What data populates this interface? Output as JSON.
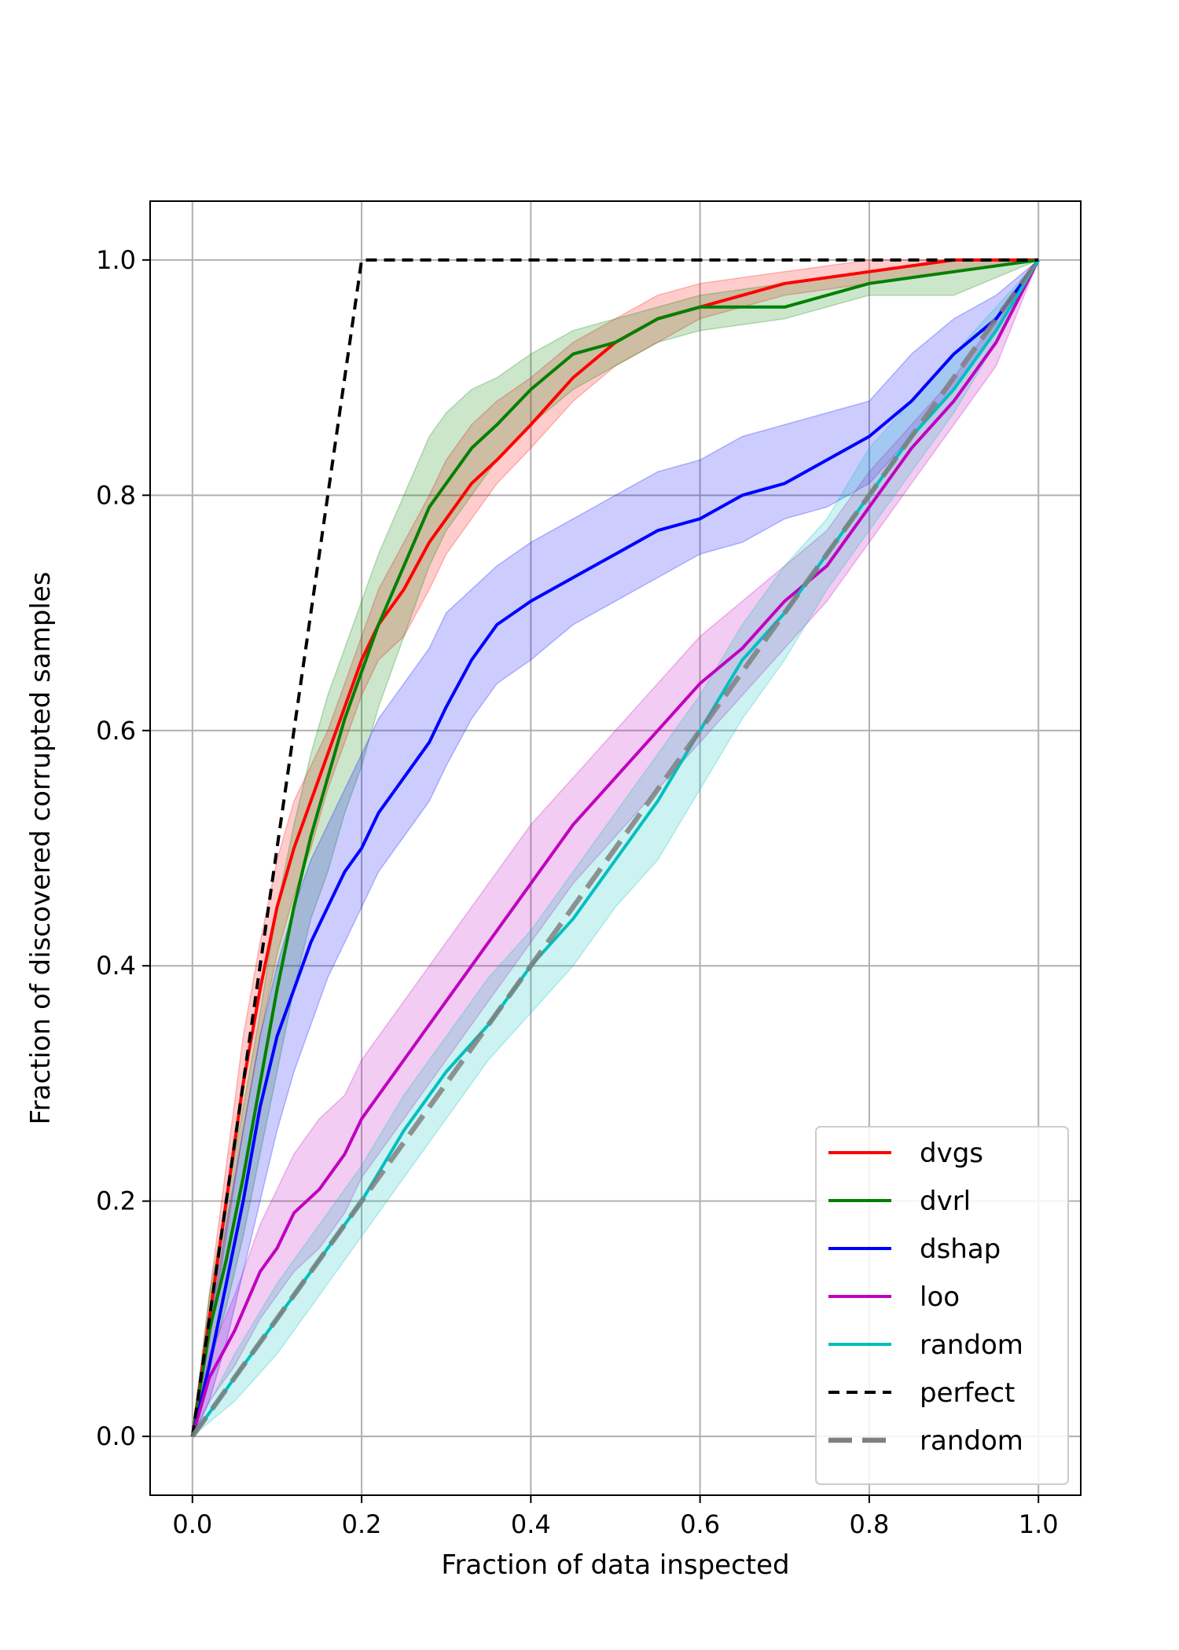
{
  "chart_data": {
    "type": "line",
    "title": "",
    "xlabel": "Fraction of data inspected",
    "ylabel": "Fraction of discovered corrupted samples",
    "xlim": [
      -0.05,
      1.05
    ],
    "ylim": [
      -0.05,
      1.05
    ],
    "grid": true,
    "legend_position": "bottom-right",
    "x_ticks": [
      0.0,
      0.2,
      0.4,
      0.6,
      0.8,
      1.0
    ],
    "y_ticks": [
      0.0,
      0.2,
      0.4,
      0.6,
      0.8,
      1.0
    ],
    "x_tick_labels": [
      "0.0",
      "0.2",
      "0.4",
      "0.6",
      "0.8",
      "1.0"
    ],
    "y_tick_labels": [
      "0.0",
      "0.2",
      "0.4",
      "0.6",
      "0.8",
      "1.0"
    ],
    "series": [
      {
        "name": "dvgs",
        "color": "#ff0000",
        "style": "solid",
        "band": true,
        "x": [
          0,
          0.02,
          0.04,
          0.06,
          0.08,
          0.1,
          0.12,
          0.14,
          0.16,
          0.18,
          0.2,
          0.22,
          0.25,
          0.28,
          0.3,
          0.33,
          0.36,
          0.4,
          0.45,
          0.5,
          0.55,
          0.6,
          0.7,
          0.8,
          0.9,
          1.0
        ],
        "y": [
          0,
          0.1,
          0.2,
          0.3,
          0.38,
          0.45,
          0.5,
          0.54,
          0.58,
          0.62,
          0.66,
          0.69,
          0.72,
          0.76,
          0.78,
          0.81,
          0.83,
          0.86,
          0.9,
          0.93,
          0.95,
          0.96,
          0.98,
          0.99,
          1.0,
          1.0
        ],
        "lower": [
          0,
          0.08,
          0.17,
          0.26,
          0.34,
          0.41,
          0.46,
          0.5,
          0.55,
          0.59,
          0.63,
          0.66,
          0.68,
          0.72,
          0.75,
          0.78,
          0.81,
          0.84,
          0.88,
          0.91,
          0.93,
          0.95,
          0.97,
          0.98,
          0.99,
          1.0
        ],
        "upper": [
          0,
          0.12,
          0.23,
          0.34,
          0.42,
          0.49,
          0.54,
          0.57,
          0.6,
          0.64,
          0.68,
          0.72,
          0.76,
          0.8,
          0.83,
          0.86,
          0.88,
          0.9,
          0.93,
          0.95,
          0.97,
          0.98,
          0.99,
          1.0,
          1.0,
          1.0
        ]
      },
      {
        "name": "dvrl",
        "color": "#008000",
        "style": "solid",
        "band": true,
        "x": [
          0,
          0.02,
          0.04,
          0.06,
          0.08,
          0.1,
          0.12,
          0.14,
          0.16,
          0.18,
          0.2,
          0.22,
          0.25,
          0.28,
          0.3,
          0.33,
          0.36,
          0.4,
          0.45,
          0.5,
          0.55,
          0.6,
          0.7,
          0.8,
          0.9,
          1.0
        ],
        "y": [
          0,
          0.09,
          0.15,
          0.22,
          0.3,
          0.38,
          0.45,
          0.51,
          0.56,
          0.61,
          0.65,
          0.69,
          0.74,
          0.79,
          0.81,
          0.84,
          0.86,
          0.89,
          0.92,
          0.93,
          0.95,
          0.96,
          0.96,
          0.98,
          0.99,
          1.0
        ],
        "lower": [
          0,
          0.06,
          0.11,
          0.17,
          0.24,
          0.31,
          0.38,
          0.44,
          0.48,
          0.53,
          0.57,
          0.62,
          0.68,
          0.74,
          0.77,
          0.8,
          0.83,
          0.86,
          0.89,
          0.91,
          0.93,
          0.94,
          0.95,
          0.97,
          0.97,
          1.0
        ],
        "upper": [
          0,
          0.12,
          0.2,
          0.28,
          0.36,
          0.45,
          0.52,
          0.58,
          0.63,
          0.67,
          0.71,
          0.75,
          0.8,
          0.85,
          0.87,
          0.89,
          0.9,
          0.92,
          0.94,
          0.95,
          0.96,
          0.97,
          0.98,
          0.99,
          1.0,
          1.0
        ]
      },
      {
        "name": "dshap",
        "color": "#0000ff",
        "style": "solid",
        "band": true,
        "x": [
          0,
          0.02,
          0.04,
          0.06,
          0.08,
          0.1,
          0.12,
          0.14,
          0.16,
          0.18,
          0.2,
          0.22,
          0.25,
          0.28,
          0.3,
          0.33,
          0.36,
          0.4,
          0.45,
          0.5,
          0.55,
          0.6,
          0.65,
          0.7,
          0.75,
          0.8,
          0.85,
          0.9,
          0.95,
          1.0
        ],
        "y": [
          0,
          0.06,
          0.13,
          0.2,
          0.28,
          0.34,
          0.38,
          0.42,
          0.45,
          0.48,
          0.5,
          0.53,
          0.56,
          0.59,
          0.62,
          0.66,
          0.69,
          0.71,
          0.73,
          0.75,
          0.77,
          0.78,
          0.8,
          0.81,
          0.83,
          0.85,
          0.88,
          0.92,
          0.95,
          1.0
        ],
        "lower": [
          0,
          0.03,
          0.08,
          0.14,
          0.2,
          0.26,
          0.31,
          0.35,
          0.39,
          0.42,
          0.45,
          0.48,
          0.51,
          0.54,
          0.57,
          0.61,
          0.64,
          0.66,
          0.69,
          0.71,
          0.73,
          0.75,
          0.76,
          0.78,
          0.79,
          0.81,
          0.85,
          0.89,
          0.94,
          1.0
        ],
        "upper": [
          0,
          0.09,
          0.18,
          0.26,
          0.34,
          0.4,
          0.45,
          0.49,
          0.52,
          0.55,
          0.58,
          0.61,
          0.64,
          0.67,
          0.7,
          0.72,
          0.74,
          0.76,
          0.78,
          0.8,
          0.82,
          0.83,
          0.85,
          0.86,
          0.87,
          0.88,
          0.92,
          0.95,
          0.97,
          1.0
        ]
      },
      {
        "name": "loo",
        "color": "#bf00bf",
        "style": "solid",
        "band": true,
        "x": [
          0,
          0.02,
          0.05,
          0.08,
          0.1,
          0.12,
          0.15,
          0.18,
          0.2,
          0.25,
          0.3,
          0.35,
          0.4,
          0.45,
          0.5,
          0.55,
          0.6,
          0.65,
          0.7,
          0.75,
          0.8,
          0.85,
          0.9,
          0.95,
          1.0
        ],
        "y": [
          0,
          0.05,
          0.09,
          0.14,
          0.16,
          0.19,
          0.21,
          0.24,
          0.27,
          0.32,
          0.37,
          0.42,
          0.47,
          0.52,
          0.56,
          0.6,
          0.64,
          0.67,
          0.71,
          0.74,
          0.79,
          0.84,
          0.88,
          0.93,
          1.0
        ],
        "lower": [
          0,
          0.03,
          0.06,
          0.1,
          0.12,
          0.14,
          0.16,
          0.19,
          0.22,
          0.27,
          0.32,
          0.37,
          0.42,
          0.47,
          0.51,
          0.55,
          0.59,
          0.63,
          0.67,
          0.71,
          0.76,
          0.81,
          0.86,
          0.91,
          1.0
        ],
        "upper": [
          0,
          0.07,
          0.12,
          0.18,
          0.21,
          0.24,
          0.27,
          0.29,
          0.32,
          0.37,
          0.42,
          0.47,
          0.52,
          0.56,
          0.6,
          0.64,
          0.68,
          0.71,
          0.74,
          0.77,
          0.82,
          0.86,
          0.9,
          0.95,
          1.0
        ]
      },
      {
        "name": "random",
        "color": "#00bfbf",
        "style": "solid",
        "band": true,
        "x": [
          0,
          0.05,
          0.1,
          0.15,
          0.2,
          0.25,
          0.3,
          0.35,
          0.4,
          0.45,
          0.5,
          0.55,
          0.6,
          0.65,
          0.7,
          0.75,
          0.8,
          0.85,
          0.9,
          0.95,
          1.0
        ],
        "y": [
          0,
          0.05,
          0.1,
          0.15,
          0.2,
          0.26,
          0.31,
          0.35,
          0.4,
          0.44,
          0.49,
          0.54,
          0.6,
          0.66,
          0.7,
          0.75,
          0.8,
          0.85,
          0.89,
          0.94,
          1.0
        ],
        "lower": [
          0,
          0.03,
          0.07,
          0.12,
          0.17,
          0.22,
          0.27,
          0.32,
          0.36,
          0.4,
          0.45,
          0.49,
          0.55,
          0.61,
          0.66,
          0.72,
          0.77,
          0.82,
          0.87,
          0.93,
          1.0
        ],
        "upper": [
          0,
          0.07,
          0.13,
          0.18,
          0.23,
          0.29,
          0.34,
          0.39,
          0.43,
          0.48,
          0.53,
          0.58,
          0.63,
          0.69,
          0.74,
          0.78,
          0.84,
          0.88,
          0.92,
          0.96,
          1.0
        ]
      },
      {
        "name": "perfect",
        "color": "#000000",
        "style": "dashed",
        "band": false,
        "x": [
          0,
          0.2,
          1.0
        ],
        "y": [
          0,
          1.0,
          1.0
        ]
      },
      {
        "name": "random",
        "color": "#808080",
        "style": "dashed-thick",
        "band": false,
        "x": [
          0,
          1.0
        ],
        "y": [
          0,
          1.0
        ]
      }
    ]
  }
}
